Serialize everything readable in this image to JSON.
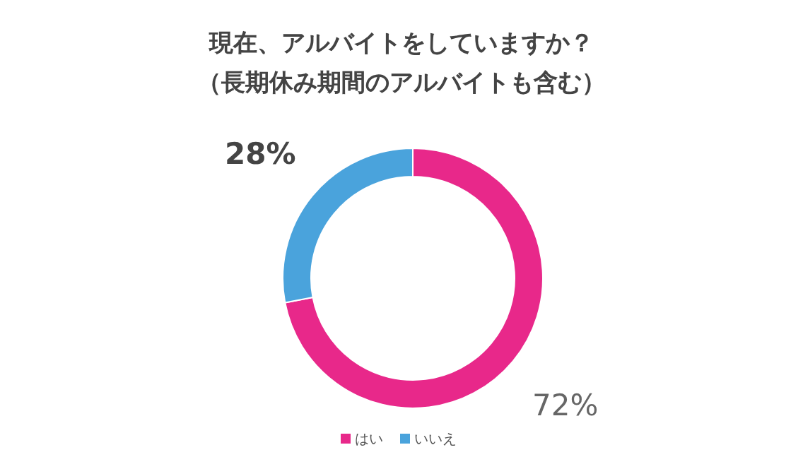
{
  "chart_data": {
    "type": "donut",
    "title": "現在、アルバイトをしていますか？",
    "subtitle": "（長期休み期間のアルバイトも含む）",
    "categories": [
      "はい",
      "いいえ"
    ],
    "values": [
      72,
      28
    ],
    "colors": [
      "#e8288a",
      "#4aa3dc"
    ],
    "value_labels": [
      "72%",
      "28%"
    ],
    "legend": "bottom"
  }
}
